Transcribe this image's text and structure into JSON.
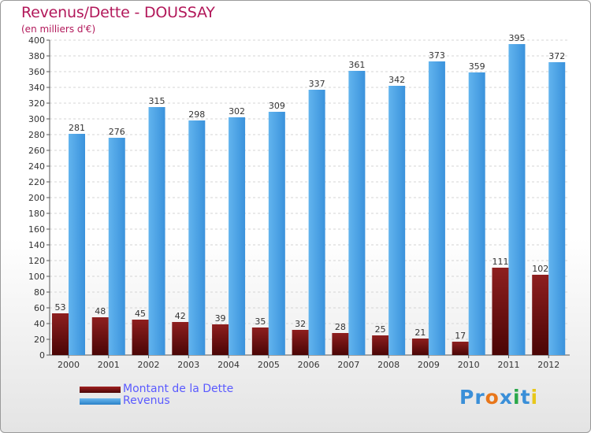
{
  "chart_data": {
    "type": "bar",
    "title": "Revenus/Dette - DOUSSAY",
    "subtitle": "(en milliers d'€)",
    "categories": [
      "2000",
      "2001",
      "2002",
      "2003",
      "2004",
      "2005",
      "2006",
      "2007",
      "2008",
      "2009",
      "2010",
      "2011",
      "2012"
    ],
    "series": [
      {
        "name": "Montant de la Dette",
        "color": "#7a1414",
        "values": [
          53,
          48,
          45,
          42,
          39,
          35,
          32,
          28,
          25,
          21,
          17,
          111,
          102
        ]
      },
      {
        "name": "Revenus",
        "color": "#3d9ae0",
        "values": [
          281,
          276,
          315,
          298,
          302,
          309,
          337,
          361,
          342,
          373,
          359,
          395,
          372
        ]
      }
    ],
    "ylim": [
      0,
      400
    ],
    "ytick_step": 20,
    "grid": true,
    "legend_position": "bottom-left"
  },
  "logo": {
    "text": "Proxiti",
    "letters": [
      "P",
      "r",
      "o",
      "x",
      "i",
      "t",
      "i"
    ],
    "colors": [
      "#3a8fd8",
      "#3a8fd8",
      "#e8761a",
      "#3a8fd8",
      "#2aa84a",
      "#3a8fd8",
      "#e8c81a"
    ]
  }
}
